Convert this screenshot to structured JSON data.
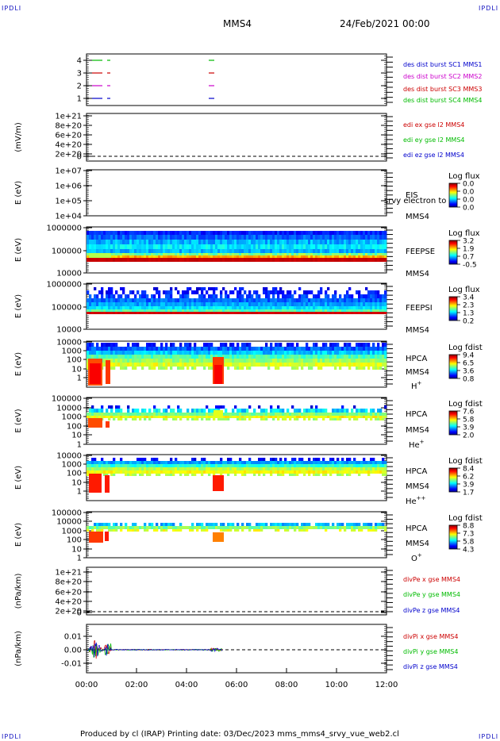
{
  "header": {
    "mark": "IPDLI",
    "spacecraft": "MMS4",
    "date": "24/Feb/2021 00:00"
  },
  "footer": {
    "text": "Produced by cl (IRAP)   Printing date: 03/Dec/2023   mms_mms4_srvy_vue_web2.cl"
  },
  "chart_data": {
    "type": "line",
    "x_ticks": [
      "00:00",
      "02:00",
      "04:00",
      "06:00",
      "08:00",
      "10:00",
      "12:00"
    ],
    "xlim": [
      "00:00",
      "12:00"
    ],
    "panels": [
      {
        "id": "burst",
        "ylabel": "",
        "yticks": [
          "4",
          "3",
          "2",
          "1"
        ],
        "legend": [
          {
            "text": "des dist burst SC1 MMS1",
            "color": "#0000cc"
          },
          {
            "text": "des dist burst SC2 MMS2",
            "color": "#cc00cc"
          },
          {
            "text": "des dist burst SC3 MMS3",
            "color": "#cc0000"
          },
          {
            "text": "des dist burst SC4 MMS4",
            "color": "#00bb00"
          }
        ]
      },
      {
        "id": "edi-e",
        "ylabel": "(mV/m)",
        "yticks": [
          "1e+21",
          "8e+20",
          "6e+20",
          "4e+20",
          "2e+20",
          "0"
        ],
        "legend": [
          {
            "text": "edi ex gse l2 MMS4",
            "color": "#cc0000"
          },
          {
            "text": "edi ey gse l2 MMS4",
            "color": "#00bb00"
          },
          {
            "text": "edi ez gse l2 MMS4",
            "color": "#0000cc"
          }
        ]
      },
      {
        "id": "eis",
        "ylabel": "E (eV)",
        "yticks": [
          "1e+07",
          "1e+06",
          "1e+05",
          "1e+04"
        ],
        "instrument": [
          "EIS",
          "MMS4"
        ],
        "overlay": "srvy electron to",
        "colorbar": {
          "title": "Log flux",
          "ticks": [
            "0.0",
            "0.0",
            "0.0",
            "0.0"
          ]
        }
      },
      {
        "id": "feepse",
        "ylabel": "E (eV)",
        "yticks": [
          "1000000",
          "100000",
          "10000"
        ],
        "instrument": [
          "FEEPSE",
          "MMS4"
        ],
        "colorbar": {
          "title": "Log flux",
          "ticks": [
            "3.2",
            "1.9",
            "0.7",
            "-0.5"
          ]
        }
      },
      {
        "id": "feepsi",
        "ylabel": "E (eV)",
        "yticks": [
          "1000000",
          "100000",
          "10000"
        ],
        "instrument": [
          "FEEPSI",
          "MMS4"
        ],
        "colorbar": {
          "title": "Log flux",
          "ticks": [
            "3.4",
            "2.3",
            "1.3",
            "0.2"
          ]
        }
      },
      {
        "id": "hpca-h",
        "ylabel": "E (eV)",
        "yticks": [
          "10000",
          "1000",
          "100",
          "10",
          "1"
        ],
        "instrument": [
          "HPCA",
          "MMS4",
          "H",
          "+"
        ],
        "colorbar": {
          "title": "Log fdist",
          "ticks": [
            "9.4",
            "6.5",
            "3.6",
            "0.8"
          ]
        }
      },
      {
        "id": "hpca-he",
        "ylabel": "E (eV)",
        "yticks": [
          "100000",
          "10000",
          "1000",
          "100",
          "10",
          "1"
        ],
        "instrument": [
          "HPCA",
          "MMS4",
          "He",
          "+"
        ],
        "colorbar": {
          "title": "Log fdist",
          "ticks": [
            "7.6",
            "5.8",
            "3.9",
            "2.0"
          ]
        }
      },
      {
        "id": "hpca-he2",
        "ylabel": "E (eV)",
        "yticks": [
          "10000",
          "1000",
          "100",
          "10",
          "1"
        ],
        "instrument": [
          "HPCA",
          "MMS4",
          "He",
          "++"
        ],
        "colorbar": {
          "title": "Log fdist",
          "ticks": [
            "8.4",
            "6.2",
            "3.9",
            "1.7"
          ]
        }
      },
      {
        "id": "hpca-o",
        "ylabel": "E (eV)",
        "yticks": [
          "100000",
          "10000",
          "1000",
          "100",
          "10",
          "1"
        ],
        "instrument": [
          "HPCA",
          "MMS4",
          "O",
          "+"
        ],
        "colorbar": {
          "title": "Log fdist",
          "ticks": [
            "8.8",
            "7.3",
            "5.8",
            "4.3"
          ]
        }
      },
      {
        "id": "divpe",
        "ylabel": "(nPa/km)",
        "yticks": [
          "1e+21",
          "8e+20",
          "6e+20",
          "4e+20",
          "2e+20",
          "0"
        ],
        "legend": [
          {
            "text": "divPe x gse MMS4",
            "color": "#cc0000"
          },
          {
            "text": "divPe y gse MMS4",
            "color": "#00bb00"
          },
          {
            "text": "divPe z gse MMS4",
            "color": "#0000cc"
          }
        ]
      },
      {
        "id": "divpi",
        "ylabel": "(nPa/km)",
        "yticks": [
          "0.01",
          "0.00",
          "-0.01"
        ],
        "legend": [
          {
            "text": "divPi x gse MMS4",
            "color": "#cc0000"
          },
          {
            "text": "divPi y gse MMS4",
            "color": "#00bb00"
          },
          {
            "text": "divPi z gse MMS4",
            "color": "#0000cc"
          }
        ]
      }
    ]
  }
}
